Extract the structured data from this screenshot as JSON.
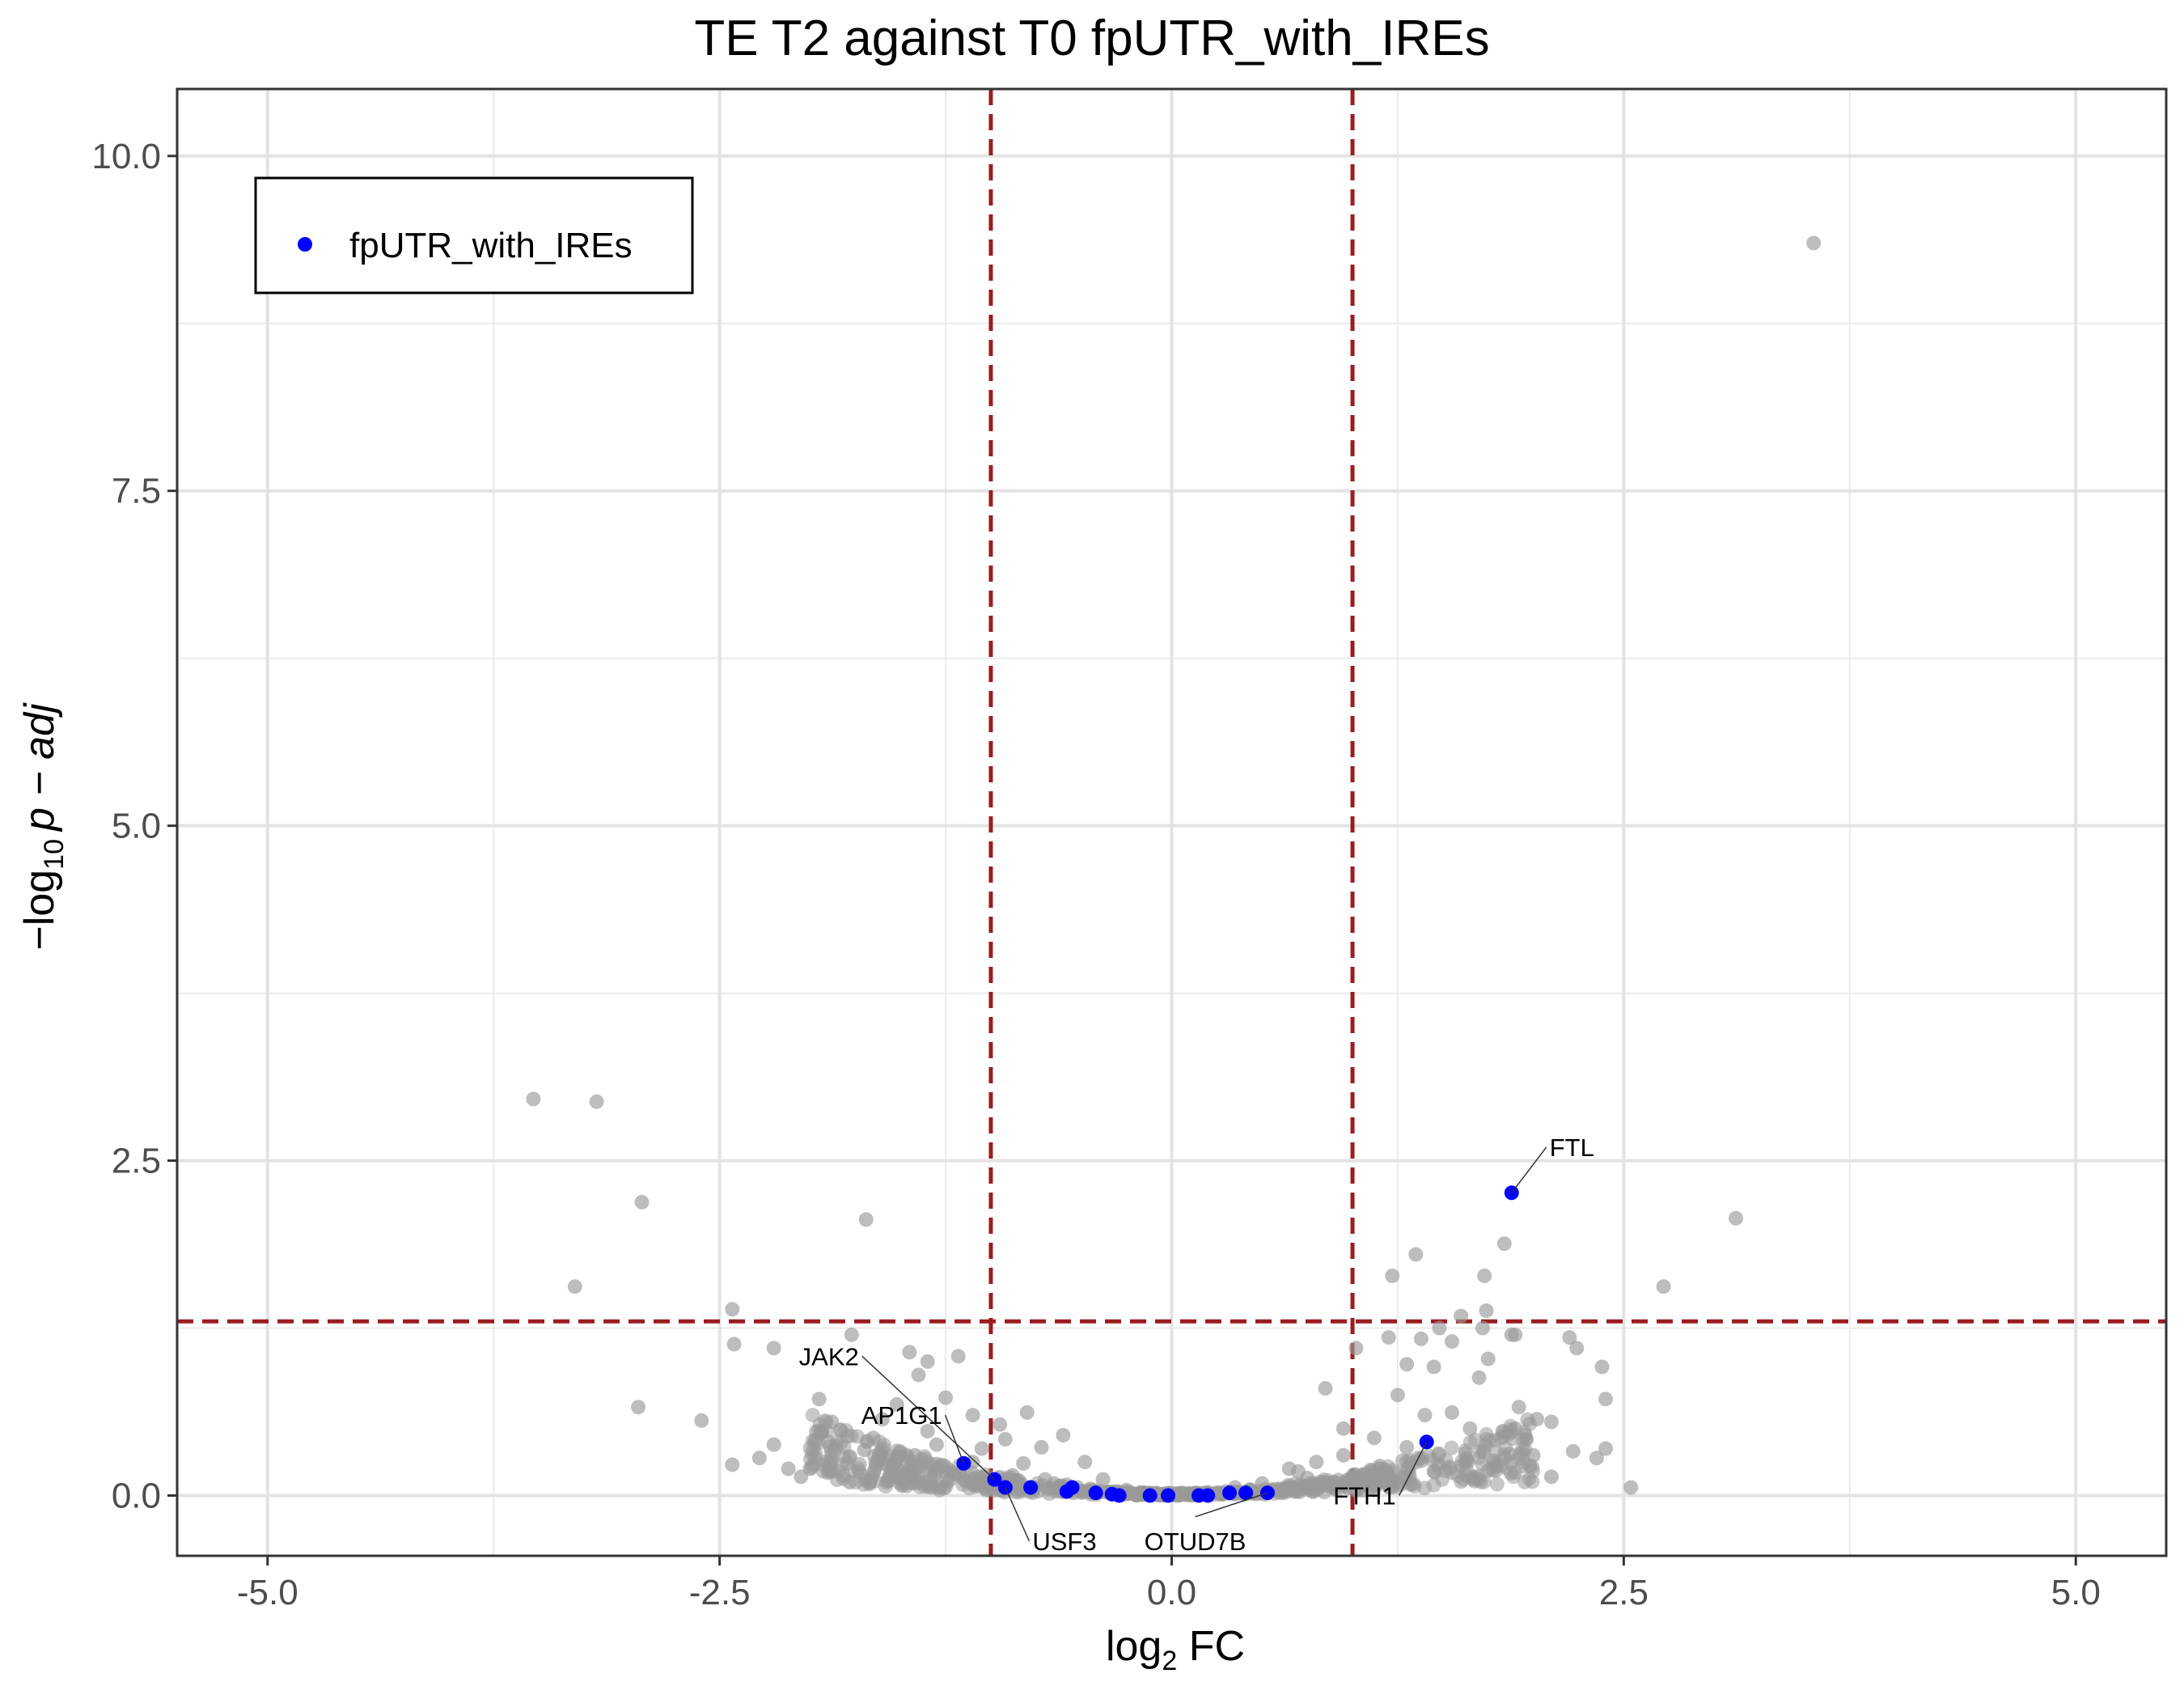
{
  "chart_data": {
    "type": "scatter",
    "title": "TE T2 against T0 fpUTR_with_IREs",
    "xlabel": {
      "main": "log",
      "sub": "2",
      "rest": " FC"
    },
    "ylabel": {
      "prefix": "−log",
      "sub": "10",
      "rest": "p − adj"
    },
    "xlim": [
      -5.5,
      5.5
    ],
    "ylim": [
      -0.45,
      10.5
    ],
    "x_ticks": [
      -5,
      -2.5,
      0,
      2.5,
      5
    ],
    "x_tick_labels": [
      "-5.0",
      "-2.5",
      "0.0",
      "2.5",
      "5.0"
    ],
    "y_ticks": [
      0,
      2.5,
      5,
      7.5,
      10
    ],
    "y_tick_labels": [
      "0.0",
      "2.5",
      "5.0",
      "7.5",
      "10.0"
    ],
    "grid": true,
    "thresholds": {
      "vertical": [
        -1,
        1
      ],
      "horizontal": 1.3,
      "color": "#9b1c20"
    },
    "legend": {
      "position": "top-left",
      "entries": [
        {
          "name": "fpUTR_with_IREs",
          "color": "#0000ff"
        }
      ]
    },
    "colors": {
      "background_points": "#999999",
      "highlight": "#0000ff"
    },
    "series": [
      {
        "role": "background",
        "points": [
          [
            3.55,
            9.35
          ],
          [
            -3.53,
            2.96
          ],
          [
            -3.18,
            2.94
          ],
          [
            -2.93,
            2.19
          ],
          [
            -1.69,
            2.06
          ],
          [
            3.12,
            2.07
          ],
          [
            -3.3,
            1.56
          ],
          [
            2.72,
            1.56
          ],
          [
            -2.43,
            1.39
          ],
          [
            -2.42,
            1.13
          ],
          [
            -2.2,
            1.1
          ],
          [
            -1.77,
            1.2
          ],
          [
            -1.45,
            1.07
          ],
          [
            -1.18,
            1.04
          ],
          [
            -1.35,
            1.0
          ],
          [
            -1.95,
            0.72
          ],
          [
            -1.52,
            0.68
          ],
          [
            -1.4,
            0.9
          ],
          [
            -2.95,
            0.66
          ],
          [
            -2.6,
            0.56
          ],
          [
            -2.43,
            0.23
          ],
          [
            -2.12,
            0.2
          ],
          [
            -1.88,
            0.55
          ],
          [
            -1.6,
            0.57
          ],
          [
            -1.25,
            0.73
          ],
          [
            -1.1,
            0.6
          ],
          [
            -0.95,
            0.53
          ],
          [
            -0.92,
            0.42
          ],
          [
            -0.8,
            0.62
          ],
          [
            -0.72,
            0.36
          ],
          [
            -0.6,
            0.45
          ],
          [
            -0.48,
            0.25
          ],
          [
            -0.38,
            0.12
          ],
          [
            -0.25,
            0.04
          ],
          [
            -0.15,
            0.02
          ],
          [
            0.05,
            0.01
          ],
          [
            0.2,
            0.02
          ],
          [
            0.35,
            0.06
          ],
          [
            0.5,
            0.09
          ],
          [
            0.65,
            0.2
          ],
          [
            0.8,
            0.25
          ],
          [
            0.95,
            0.3
          ],
          [
            0.85,
            0.8
          ],
          [
            0.95,
            0.5
          ],
          [
            1.02,
            1.1
          ],
          [
            1.12,
            0.43
          ],
          [
            1.2,
            1.18
          ],
          [
            1.25,
            0.75
          ],
          [
            1.3,
            0.98
          ],
          [
            1.35,
            1.8
          ],
          [
            1.38,
            1.17
          ],
          [
            1.4,
            0.6
          ],
          [
            1.45,
            0.96
          ],
          [
            1.48,
            1.25
          ],
          [
            1.55,
            1.15
          ],
          [
            1.6,
            1.34
          ],
          [
            1.65,
            0.5
          ],
          [
            1.7,
            0.88
          ],
          [
            1.73,
            1.64
          ],
          [
            1.74,
            1.38
          ],
          [
            1.72,
            1.25
          ],
          [
            1.75,
            1.02
          ],
          [
            1.84,
            1.88
          ],
          [
            1.88,
            1.2
          ],
          [
            1.9,
            1.2
          ],
          [
            1.9,
            0.5
          ],
          [
            1.92,
            0.66
          ],
          [
            2.0,
            0.3
          ],
          [
            2.02,
            0.57
          ],
          [
            2.1,
            0.55
          ],
          [
            2.2,
            1.18
          ],
          [
            2.22,
            0.33
          ],
          [
            2.24,
            1.1
          ],
          [
            2.35,
            0.28
          ],
          [
            2.38,
            0.96
          ],
          [
            2.4,
            0.72
          ],
          [
            2.4,
            0.35
          ],
          [
            2.54,
            0.06
          ],
          [
            1.22,
            1.64
          ],
          [
            1.3,
            0.36
          ],
          [
            1.55,
            0.62
          ],
          [
            1.83,
            0.48
          ],
          [
            1.87,
            0.31
          ],
          [
            1.78,
            0.26
          ],
          [
            -2.0,
            0.2
          ],
          [
            -2.2,
            0.38
          ],
          [
            -1.7,
            0.34
          ],
          [
            -1.35,
            0.48
          ],
          [
            -1.05,
            0.35
          ],
          [
            -0.82,
            0.24
          ],
          [
            -0.7,
            0.12
          ],
          [
            -1.58,
            0.27
          ],
          [
            -1.88,
            0.18
          ],
          [
            -1.5,
            0.12
          ],
          [
            -1.2,
            0.16
          ],
          [
            -0.58,
            0.08
          ],
          [
            -0.45,
            0.05
          ],
          [
            0.6,
            0.05
          ],
          [
            0.75,
            0.13
          ],
          [
            1.05,
            0.15
          ],
          [
            1.15,
            0.22
          ],
          [
            1.6,
            0.22
          ],
          [
            1.7,
            0.12
          ],
          [
            1.45,
            0.18
          ],
          [
            -1.65,
            0.43
          ],
          [
            -1.3,
            0.38
          ],
          [
            -1.1,
            0.25
          ],
          [
            -0.88,
            0.15
          ],
          [
            -1.78,
            0.1
          ],
          [
            -2.05,
            0.14
          ],
          [
            1.98,
            0.22
          ],
          [
            2.1,
            0.14
          ],
          [
            1.25,
            0.1
          ],
          [
            0.9,
            0.1
          ],
          [
            -0.3,
            0.03
          ],
          [
            0.3,
            0.03
          ],
          [
            -0.1,
            0.01
          ],
          [
            0.1,
            0.01
          ],
          [
            0.43,
            0.04
          ],
          [
            -0.52,
            0.06
          ],
          [
            -0.65,
            0.09
          ],
          [
            0.7,
            0.18
          ],
          [
            1.38,
            0.28
          ],
          [
            -1.42,
            0.3
          ],
          [
            -2.28,
            0.28
          ],
          [
            -1.9,
            0.4
          ]
        ]
      },
      {
        "name": "fpUTR_with_IREs",
        "role": "highlight",
        "points": [
          [
            1.88,
            2.26
          ],
          [
            1.41,
            0.4
          ],
          [
            -1.15,
            0.24
          ],
          [
            -0.98,
            0.12
          ],
          [
            -0.92,
            0.06
          ],
          [
            -0.78,
            0.06
          ],
          [
            -0.58,
            0.03
          ],
          [
            -0.55,
            0.06
          ],
          [
            -0.42,
            0.02
          ],
          [
            -0.33,
            0.01
          ],
          [
            -0.29,
            0.0
          ],
          [
            -0.12,
            0.0
          ],
          [
            -0.02,
            0.0
          ],
          [
            0.15,
            0.0
          ],
          [
            0.2,
            0.0
          ],
          [
            0.32,
            0.02
          ],
          [
            0.41,
            0.02
          ],
          [
            0.53,
            0.02
          ]
        ]
      }
    ],
    "annotations": [
      {
        "label": "FTL",
        "x": 1.88,
        "y": 2.26,
        "tx": 2.09,
        "ty": 2.6,
        "anchor": "start"
      },
      {
        "label": "FTH1",
        "x": 1.41,
        "y": 0.4,
        "tx": 1.24,
        "ty": 0.0,
        "anchor": "end"
      },
      {
        "label": "JAK2",
        "x": -0.98,
        "y": 0.12,
        "tx": -1.73,
        "ty": 1.04,
        "anchor": "end"
      },
      {
        "label": "AP1G1",
        "x": -1.15,
        "y": 0.24,
        "tx": -1.27,
        "ty": 0.6,
        "anchor": "end"
      },
      {
        "label": "USF3",
        "x": -0.92,
        "y": 0.06,
        "tx": -0.77,
        "ty": -0.34,
        "anchor": "start"
      },
      {
        "label": "OTUD7B",
        "x": 0.53,
        "y": 0.02,
        "tx": 0.13,
        "ty": -0.34,
        "anchor": "middle"
      }
    ]
  }
}
